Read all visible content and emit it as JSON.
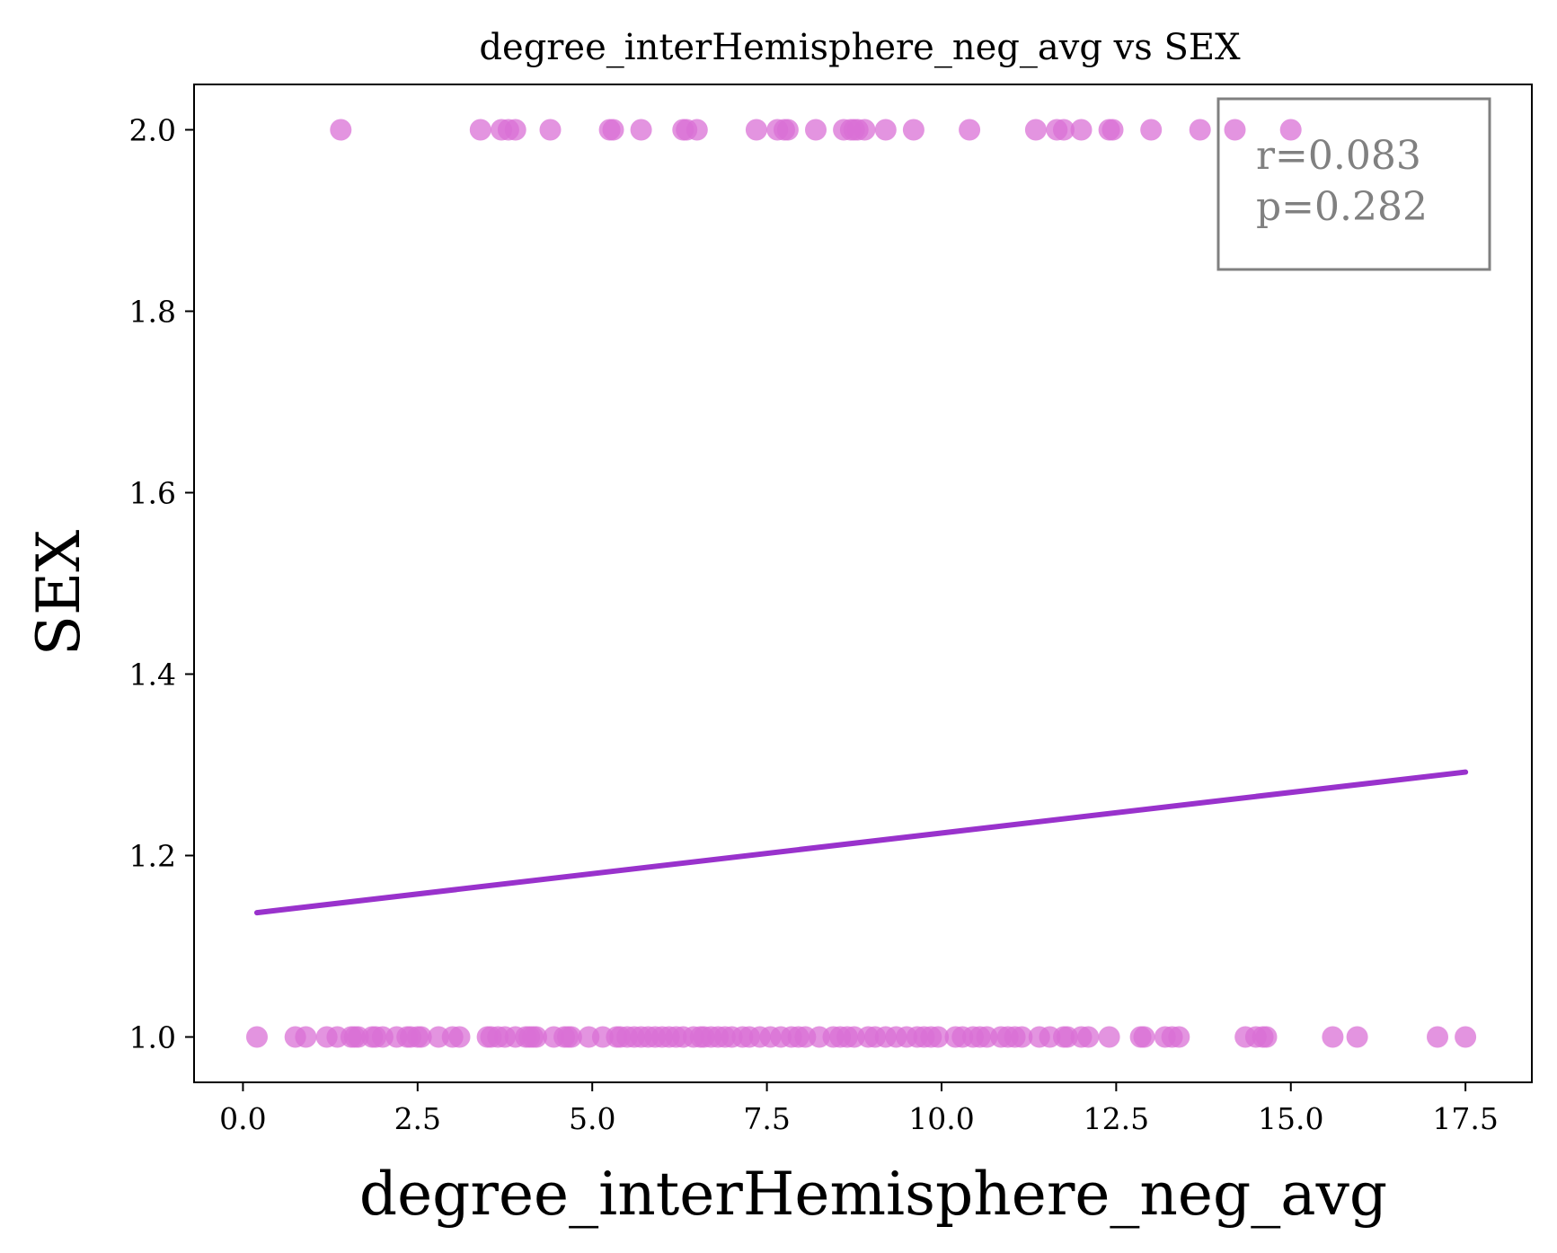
{
  "chart_data": {
    "type": "scatter",
    "title": "degree_interHemisphere_neg_avg vs SEX",
    "xlabel": "degree_interHemisphere_neg_avg",
    "ylabel": "SEX",
    "xlim": [
      -0.7,
      18.45
    ],
    "ylim": [
      0.95,
      2.05
    ],
    "x_ticks": [
      0.0,
      2.5,
      5.0,
      7.5,
      10.0,
      12.5,
      15.0,
      17.5
    ],
    "x_tick_labels": [
      "0.0",
      "2.5",
      "5.0",
      "7.5",
      "10.0",
      "12.5",
      "15.0",
      "17.5"
    ],
    "y_ticks": [
      1.0,
      1.2,
      1.4,
      1.6,
      1.8,
      2.0
    ],
    "y_tick_labels": [
      "1.0",
      "1.2",
      "1.4",
      "1.6",
      "1.8",
      "2.0"
    ],
    "grid": false,
    "point_color": "#da70d6",
    "line_color": "#9932cc",
    "annotation": {
      "lines": [
        "r=0.083",
        "p=0.282"
      ],
      "position": "top-right",
      "color": "#808080"
    },
    "series": [
      {
        "values_y": 2,
        "x": [
          1.4,
          3.4,
          3.7,
          3.8,
          3.9,
          4.4,
          5.25,
          5.3,
          5.7,
          6.3,
          6.35,
          6.5,
          7.35,
          7.65,
          7.75,
          7.8,
          8.2,
          8.6,
          8.7,
          8.75,
          8.8,
          8.9,
          9.2,
          9.6,
          10.4,
          11.35,
          11.65,
          11.75,
          12.0,
          12.4,
          12.45,
          13.0,
          13.7,
          14.2,
          15.0
        ]
      },
      {
        "values_y": 1,
        "x": [
          0.2,
          0.75,
          0.9,
          1.2,
          1.35,
          1.55,
          1.6,
          1.65,
          1.85,
          1.9,
          2.0,
          2.2,
          2.35,
          2.4,
          2.5,
          2.55,
          2.8,
          3.0,
          3.1,
          3.5,
          3.55,
          3.65,
          3.75,
          3.9,
          4.05,
          4.1,
          4.15,
          4.2,
          4.45,
          4.6,
          4.65,
          4.7,
          4.95,
          5.15,
          5.35,
          5.4,
          5.5,
          5.6,
          5.7,
          5.8,
          5.9,
          6.0,
          6.1,
          6.2,
          6.3,
          6.45,
          6.55,
          6.6,
          6.7,
          6.8,
          6.9,
          7.0,
          7.15,
          7.25,
          7.4,
          7.55,
          7.7,
          7.85,
          7.95,
          8.05,
          8.25,
          8.45,
          8.55,
          8.65,
          8.75,
          8.95,
          9.05,
          9.2,
          9.35,
          9.5,
          9.65,
          9.75,
          9.85,
          9.95,
          10.2,
          10.3,
          10.45,
          10.55,
          10.65,
          10.85,
          10.95,
          11.05,
          11.15,
          11.4,
          11.55,
          11.75,
          11.8,
          12.0,
          12.1,
          12.4,
          12.85,
          12.9,
          13.2,
          13.3,
          13.4,
          14.35,
          14.5,
          14.6,
          14.65,
          15.6,
          15.95,
          17.1,
          17.5
        ]
      }
    ],
    "regression_line": {
      "x": [
        0.2,
        17.5
      ],
      "y": [
        1.137,
        1.292
      ]
    }
  }
}
